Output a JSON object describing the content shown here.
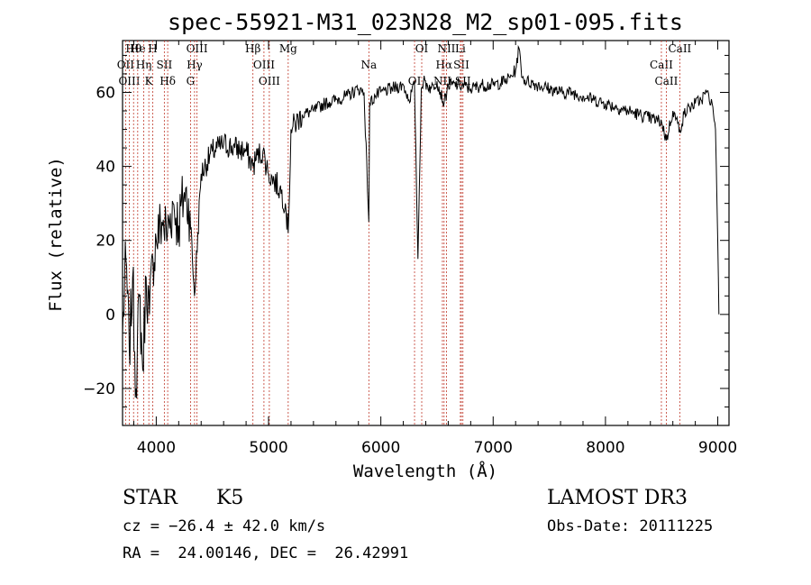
{
  "chart_data": {
    "type": "line",
    "title": "spec-55921-M31_023N28_M2_sp01-095.fits",
    "xlabel": "Wavelength (Å)",
    "ylabel": "Flux (relative)",
    "xlim": [
      3700,
      9100
    ],
    "ylim": [
      -30,
      74
    ],
    "x_ticks": [
      4000,
      5000,
      6000,
      7000,
      8000,
      9000
    ],
    "y_ticks": [
      -20,
      0,
      20,
      40,
      60
    ],
    "series": [
      {
        "name": "spectrum",
        "x": [
          3700,
          3730,
          3760,
          3790,
          3820,
          3850,
          3880,
          3910,
          3940,
          3970,
          4000,
          4050,
          4100,
          4150,
          4200,
          4250,
          4300,
          4340,
          4400,
          4500,
          4600,
          4700,
          4800,
          4861,
          4900,
          4950,
          5000,
          5050,
          5100,
          5150,
          5175,
          5200,
          5300,
          5400,
          5500,
          5600,
          5700,
          5800,
          5850,
          5893,
          5900,
          5950,
          6000,
          6100,
          6200,
          6250,
          6300,
          6330,
          6360,
          6380,
          6450,
          6500,
          6563,
          6600,
          6700,
          6800,
          6900,
          7000,
          7100,
          7150,
          7200,
          7230,
          7260,
          7300,
          7400,
          7500,
          7600,
          7700,
          7800,
          7900,
          8000,
          8100,
          8200,
          8300,
          8400,
          8500,
          8542,
          8600,
          8662,
          8700,
          8750,
          8800,
          8850,
          8900,
          8950,
          8980,
          9000,
          9010
        ],
        "y": [
          -5,
          15,
          -10,
          10,
          -20,
          5,
          -15,
          10,
          0,
          15,
          20,
          25,
          22,
          30,
          24,
          33,
          28,
          5,
          38,
          44,
          46,
          45,
          44,
          40,
          43,
          44,
          38,
          36,
          34,
          30,
          22,
          50,
          54,
          55,
          57,
          58,
          59,
          61,
          60,
          25,
          57,
          59,
          60,
          61,
          62,
          58,
          62,
          15,
          61,
          63,
          61,
          63,
          57,
          62,
          62,
          61,
          62,
          62,
          63,
          64,
          66,
          72,
          64,
          63,
          62,
          61,
          60,
          60,
          59,
          58,
          57,
          56,
          55,
          54,
          53,
          52,
          47,
          55,
          50,
          54,
          56,
          57,
          58,
          60,
          57,
          50,
          20,
          0
        ]
      }
    ],
    "lines": [
      {
        "label": "Hθ",
        "wave": 3798
      },
      {
        "label": "OII",
        "wave": 3727
      },
      {
        "label": "OIII",
        "wave": 3760
      },
      {
        "label": "He",
        "wave": 3835
      },
      {
        "label": "Hη",
        "wave": 3889
      },
      {
        "label": "K",
        "wave": 3934
      },
      {
        "label": "H",
        "wave": 3969
      },
      {
        "label": "SII",
        "wave": 4072
      },
      {
        "label": "Hδ",
        "wave": 4102
      },
      {
        "label": "OIII",
        "wave": 4363
      },
      {
        "label": "Hγ",
        "wave": 4341
      },
      {
        "label": "G",
        "wave": 4305
      },
      {
        "label": "Hβ",
        "wave": 4861
      },
      {
        "label": "OIII",
        "wave": 4959
      },
      {
        "label": "OIII",
        "wave": 5007
      },
      {
        "label": "Mg",
        "wave": 5175
      },
      {
        "label": "Na",
        "wave": 5893
      },
      {
        "label": "OI",
        "wave": 6300
      },
      {
        "label": "OI",
        "wave": 6364
      },
      {
        "label": "Hα",
        "wave": 6563
      },
      {
        "label": "NII",
        "wave": 6548
      },
      {
        "label": "NII",
        "wave": 6584
      },
      {
        "label": "SII",
        "wave": 6717
      },
      {
        "label": "SII",
        "wave": 6731
      },
      {
        "label": "Li",
        "wave": 6708
      },
      {
        "label": "CaII",
        "wave": 8498
      },
      {
        "label": "CaII",
        "wave": 8542
      },
      {
        "label": "CaII",
        "wave": 8662
      }
    ]
  },
  "footer": {
    "class": "STAR",
    "subclass": "K5",
    "survey": "LAMOST DR3",
    "cz": "cz = −26.4 ± 42.0 km/s",
    "obs_date": "Obs-Date: 20111225",
    "coords": "RA =  24.00146, DEC =  26.42991"
  },
  "colors": {
    "spectrum": "#000000",
    "line_marker": "#c0392b",
    "frame": "#000000"
  }
}
